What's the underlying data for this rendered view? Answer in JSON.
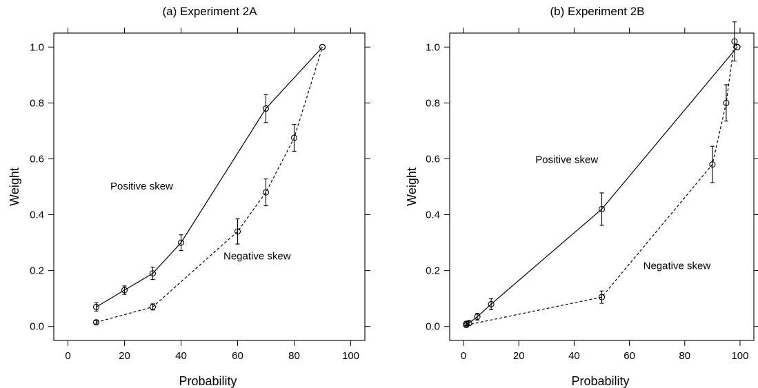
{
  "chart_data": [
    {
      "type": "line",
      "title": "(a) Experiment 2A",
      "xlabel": "Probability",
      "ylabel": "Weight",
      "xlim": [
        -5,
        105
      ],
      "ylim": [
        -0.05,
        1.05
      ],
      "xticks": [
        0,
        20,
        40,
        60,
        80,
        100
      ],
      "yticks": [
        0.0,
        0.2,
        0.4,
        0.6,
        0.8,
        1.0
      ],
      "ytick_labels": [
        "0.0",
        "0.2",
        "0.4",
        "0.6",
        "0.8",
        "1.0"
      ],
      "grid": false,
      "series": [
        {
          "name": "Positive skew",
          "line_style": "solid",
          "x": [
            10,
            20,
            30,
            40,
            70,
            90
          ],
          "y": [
            0.07,
            0.13,
            0.19,
            0.3,
            0.78,
            1.0
          ],
          "error": [
            0.015,
            0.015,
            0.022,
            0.028,
            0.05,
            0.0
          ],
          "label_at": [
            15,
            0.49
          ]
        },
        {
          "name": "Negative skew",
          "line_style": "dashed",
          "x": [
            10,
            30,
            60,
            70,
            80,
            90
          ],
          "y": [
            0.015,
            0.07,
            0.34,
            0.48,
            0.675,
            1.0
          ],
          "error": [
            0.006,
            0.011,
            0.045,
            0.048,
            0.048,
            0.0
          ],
          "label_at": [
            55,
            0.24
          ]
        }
      ]
    },
    {
      "type": "line",
      "title": "(b) Experiment 2B",
      "xlabel": "Probability",
      "ylabel": "Weight",
      "xlim": [
        -5,
        105
      ],
      "ylim": [
        -0.05,
        1.05
      ],
      "xticks": [
        0,
        20,
        40,
        60,
        80,
        100
      ],
      "yticks": [
        0.0,
        0.2,
        0.4,
        0.6,
        0.8,
        1.0
      ],
      "ytick_labels": [
        "0.0",
        "0.2",
        "0.4",
        "0.6",
        "0.8",
        "1.0"
      ],
      "grid": false,
      "series": [
        {
          "name": "Positive skew",
          "line_style": "solid",
          "x": [
            1,
            2,
            5,
            10,
            50,
            99
          ],
          "y": [
            0.01,
            0.012,
            0.035,
            0.08,
            0.42,
            1.0
          ],
          "error": [
            0.007,
            0.007,
            0.012,
            0.02,
            0.058,
            0.0
          ],
          "label_at": [
            26,
            0.585
          ]
        },
        {
          "name": "Negative skew",
          "line_style": "dashed",
          "x": [
            1,
            50,
            90,
            95,
            98,
            99
          ],
          "y": [
            0.005,
            0.105,
            0.58,
            0.8,
            1.02,
            1.0
          ],
          "error": [
            0.004,
            0.022,
            0.065,
            0.065,
            0.07,
            0.0
          ],
          "label_at": [
            65,
            0.205
          ]
        }
      ]
    }
  ]
}
